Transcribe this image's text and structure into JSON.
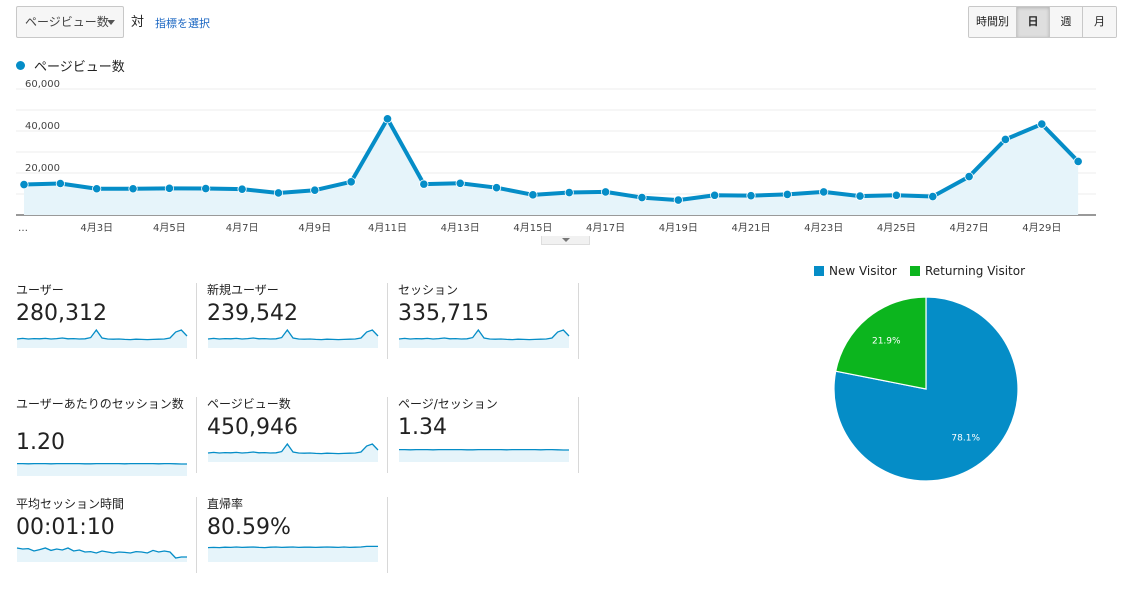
{
  "toolbar": {
    "metric_select": "ページビュー数",
    "vs_label": "対",
    "select_metric_link": "指標を選択",
    "granularity": [
      {
        "label": "時間別",
        "active": false
      },
      {
        "label": "日",
        "active": true
      },
      {
        "label": "週",
        "active": false
      },
      {
        "label": "月",
        "active": false
      }
    ]
  },
  "chart_data": [
    {
      "type": "line",
      "title": "",
      "legend": "top-left",
      "grid": true,
      "series": [
        {
          "name": "ページビュー数",
          "color": "#058dc7",
          "values": [
            14500,
            15000,
            12500,
            12500,
            12700,
            12600,
            12300,
            10500,
            11800,
            15800,
            45800,
            14700,
            15100,
            13000,
            9600,
            10700,
            11000,
            8300,
            7100,
            9400,
            9200,
            9800,
            11000,
            9000,
            9400,
            8800,
            18300,
            36000,
            43300,
            25500
          ]
        }
      ],
      "x_labels": [
        "…",
        "",
        "4月3日",
        "",
        "4月5日",
        "",
        "4月7日",
        "",
        "4月9日",
        "",
        "4月11日",
        "",
        "4月13日",
        "",
        "4月15日",
        "",
        "4月17日",
        "",
        "4月19日",
        "",
        "4月21日",
        "",
        "4月23日",
        "",
        "4月25日",
        "",
        "4月27日",
        "",
        "4月29日",
        ""
      ],
      "y_ticks": [
        "20,000",
        "40,000",
        "60,000"
      ],
      "ylim": [
        0,
        60000
      ]
    },
    {
      "type": "pie",
      "legend": "top",
      "slices": [
        {
          "label": "New Visitor",
          "value": 78.1,
          "color": "#058dc7",
          "text": "78.1%"
        },
        {
          "label": "Returning Visitor",
          "value": 21.9,
          "color": "#0cb51e",
          "text": "21.9%"
        }
      ]
    }
  ],
  "metrics": [
    {
      "label": "ユーザー",
      "value": "280,312",
      "spark": "traffic"
    },
    {
      "label": "新規ユーザー",
      "value": "239,542",
      "spark": "traffic"
    },
    {
      "label": "セッション",
      "value": "335,715",
      "spark": "traffic"
    },
    {
      "label": "ユーザーあたりのセッション数",
      "value": "1.20",
      "spark": "flat"
    },
    {
      "label": "ページビュー数",
      "value": "450,946",
      "spark": "traffic"
    },
    {
      "label": "ページ/セッション",
      "value": "1.34",
      "spark": "flat"
    },
    {
      "label": "平均セッション時間",
      "value": "00:01:10",
      "spark": "duration"
    },
    {
      "label": "直帰率",
      "value": "80.59%",
      "spark": "bounce"
    }
  ]
}
